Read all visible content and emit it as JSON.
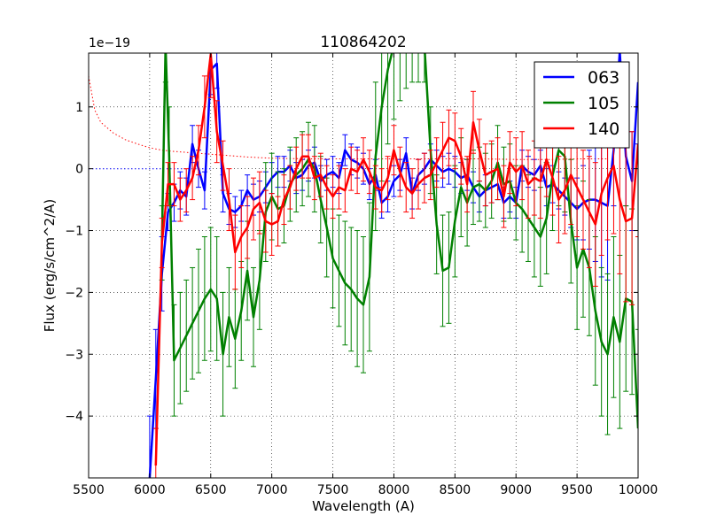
{
  "chart_data": {
    "type": "line",
    "title": "110864202",
    "xlabel": "Wavelength (A)",
    "ylabel": "Flux (erg/s/cm^2/A)",
    "offset_label": "1e−19",
    "xlim": [
      5500,
      10000
    ],
    "ylim": [
      -5,
      1.87
    ],
    "grid": true,
    "legend_position": "top-right",
    "x_ticks": [
      5500,
      6000,
      6500,
      7000,
      7500,
      8000,
      8500,
      9000,
      9500,
      10000
    ],
    "x_tick_labels": [
      "5500",
      "6000",
      "6500",
      "7000",
      "7500",
      "8000",
      "8500",
      "9000",
      "9500",
      "10000"
    ],
    "y_ticks": [
      1,
      0,
      -1,
      -2,
      -3,
      -4
    ],
    "y_tick_labels": [
      "1",
      "0",
      "−1",
      "−2",
      "−3",
      "−4"
    ],
    "reference_lines": [
      {
        "name": "zero-level",
        "color": "#0000ff",
        "style": "dotted",
        "x": [
          5500,
          6500
        ],
        "y": [
          0,
          0
        ]
      },
      {
        "name": "red-error-envelope",
        "color": "#ff0000",
        "style": "dotted",
        "x": [
          5500,
          5550,
          5600,
          5700,
          5800,
          5900,
          6000,
          6100,
          6200,
          6400,
          6600,
          6800,
          7000,
          7300,
          7800,
          8300,
          8700,
          9000,
          9300,
          9500,
          9750
        ],
        "y": [
          1.5,
          0.95,
          0.75,
          0.58,
          0.47,
          0.4,
          0.34,
          0.3,
          0.28,
          0.25,
          0.22,
          0.19,
          0.17,
          0.16,
          0.16,
          0.16,
          0.16,
          0.15,
          0.15,
          0.16,
          0.16
        ]
      }
    ],
    "series": [
      {
        "name": "063",
        "color": "#0000ff",
        "x": [
          6000,
          6050,
          6100,
          6150,
          6200,
          6250,
          6300,
          6350,
          6400,
          6450,
          6500,
          6550,
          6600,
          6650,
          6700,
          6750,
          6800,
          6850,
          6900,
          6950,
          7000,
          7050,
          7100,
          7150,
          7200,
          7250,
          7300,
          7350,
          7400,
          7450,
          7500,
          7550,
          7600,
          7650,
          7700,
          7750,
          7800,
          7850,
          7900,
          7950,
          8000,
          8050,
          8100,
          8150,
          8200,
          8250,
          8300,
          8350,
          8400,
          8450,
          8500,
          8550,
          8600,
          8650,
          8700,
          8750,
          8800,
          8850,
          8900,
          8950,
          9000,
          9050,
          9100,
          9150,
          9200,
          9250,
          9300,
          9350,
          9400,
          9450,
          9500,
          9550,
          9600,
          9650,
          9700,
          9750,
          9800,
          9850,
          9900,
          9950,
          10000
        ],
        "y": [
          -5.0,
          -3.4,
          -1.7,
          -0.7,
          -0.55,
          -0.35,
          -0.45,
          0.4,
          0.0,
          -0.35,
          1.6,
          1.7,
          -0.4,
          -0.65,
          -0.7,
          -0.6,
          -0.35,
          -0.5,
          -0.45,
          -0.3,
          -0.15,
          -0.05,
          -0.05,
          0.05,
          -0.15,
          -0.1,
          0.05,
          0.1,
          -0.2,
          -0.1,
          -0.05,
          -0.15,
          0.3,
          0.15,
          0.1,
          0.0,
          -0.25,
          -0.1,
          -0.55,
          -0.45,
          -0.2,
          -0.1,
          0.25,
          -0.4,
          -0.1,
          0.0,
          0.15,
          0.05,
          -0.05,
          0.0,
          -0.05,
          -0.15,
          -0.1,
          -0.3,
          -0.45,
          -0.35,
          -0.3,
          -0.25,
          -0.55,
          -0.45,
          -0.55,
          0.05,
          -0.05,
          -0.1,
          0.05,
          -0.3,
          -0.25,
          -0.35,
          -0.45,
          -0.55,
          -0.65,
          -0.55,
          -0.5,
          -0.5,
          -0.55,
          -0.6,
          0.3,
          1.9,
          0.2,
          -0.2,
          1.4
        ],
        "err": [
          1.0,
          0.8,
          0.6,
          0.3,
          0.3,
          0.3,
          0.3,
          0.3,
          0.3,
          0.3,
          0.4,
          0.4,
          0.3,
          0.25,
          0.25,
          0.25,
          0.25,
          0.25,
          0.25,
          0.25,
          0.25,
          0.25,
          0.25,
          0.25,
          0.25,
          0.25,
          0.25,
          0.25,
          0.25,
          0.25,
          0.25,
          0.25,
          0.25,
          0.25,
          0.25,
          0.25,
          0.25,
          0.25,
          0.25,
          0.25,
          0.25,
          0.25,
          0.25,
          0.25,
          0.25,
          0.25,
          0.25,
          0.25,
          0.25,
          0.25,
          0.25,
          0.25,
          0.25,
          0.25,
          0.25,
          0.25,
          0.25,
          0.25,
          0.25,
          0.25,
          0.25,
          0.25,
          0.25,
          0.25,
          0.25,
          0.3,
          0.3,
          0.3,
          0.3,
          0.4,
          0.5,
          0.6,
          0.8,
          1.0,
          1.2,
          1.2,
          0.9,
          1.0,
          0.8,
          0.8,
          1.0
        ]
      },
      {
        "name": "105",
        "color": "#008000",
        "x": [
          6100,
          6130,
          6160,
          6200,
          6250,
          6300,
          6350,
          6400,
          6450,
          6500,
          6550,
          6600,
          6650,
          6700,
          6750,
          6800,
          6850,
          6900,
          6950,
          7000,
          7050,
          7100,
          7150,
          7200,
          7250,
          7300,
          7350,
          7400,
          7450,
          7500,
          7550,
          7600,
          7650,
          7700,
          7750,
          7800,
          7850,
          7900,
          7950,
          8000,
          8050,
          8100,
          8150,
          8200,
          8250,
          8300,
          8350,
          8400,
          8450,
          8500,
          8550,
          8600,
          8650,
          8700,
          8750,
          8800,
          8850,
          8900,
          8950,
          9000,
          9050,
          9100,
          9150,
          9200,
          9250,
          9300,
          9350,
          9400,
          9450,
          9500,
          9550,
          9600,
          9650,
          9700,
          9750,
          9800,
          9850,
          9900,
          9950,
          10000
        ],
        "y": [
          -1.2,
          2.0,
          0.2,
          -3.1,
          -2.9,
          -2.7,
          -2.5,
          -2.3,
          -2.1,
          -1.95,
          -2.1,
          -3.0,
          -2.4,
          -2.75,
          -2.3,
          -1.65,
          -2.4,
          -1.8,
          -0.7,
          -0.45,
          -0.65,
          -0.6,
          -0.25,
          -0.1,
          0.0,
          0.15,
          0.0,
          -0.5,
          -0.95,
          -1.45,
          -1.65,
          -1.85,
          -1.95,
          -2.1,
          -2.2,
          -1.75,
          0.2,
          1.0,
          1.6,
          2.0,
          1.9,
          2.0,
          2.0,
          2.0,
          2.0,
          0.3,
          -0.9,
          -1.65,
          -1.6,
          -0.85,
          -0.3,
          -0.55,
          -0.3,
          -0.25,
          -0.35,
          -0.2,
          0.1,
          -0.25,
          -0.2,
          -0.55,
          -0.65,
          -0.8,
          -0.95,
          -1.1,
          -0.8,
          -0.1,
          0.3,
          0.2,
          -0.85,
          -1.6,
          -1.3,
          -1.6,
          -2.3,
          -2.8,
          -3.0,
          -2.4,
          -2.8,
          -2.1,
          -2.15,
          -4.2
        ],
        "err": [
          0.6,
          0.6,
          0.8,
          0.9,
          0.9,
          0.9,
          0.9,
          1.0,
          1.0,
          1.0,
          1.0,
          1.0,
          0.8,
          0.8,
          0.8,
          0.8,
          0.8,
          0.8,
          0.8,
          0.7,
          0.6,
          0.6,
          0.6,
          0.6,
          0.6,
          0.6,
          0.7,
          0.7,
          0.8,
          0.8,
          0.9,
          1.0,
          1.0,
          1.1,
          1.1,
          1.2,
          1.2,
          1.2,
          1.2,
          1.2,
          0.8,
          0.7,
          0.6,
          0.6,
          0.6,
          0.7,
          0.8,
          0.9,
          0.9,
          0.9,
          0.8,
          0.7,
          0.6,
          0.6,
          0.6,
          0.6,
          0.6,
          0.6,
          0.6,
          0.6,
          0.7,
          0.7,
          0.8,
          0.8,
          0.9,
          0.9,
          0.9,
          0.9,
          1.0,
          1.0,
          1.1,
          1.1,
          1.2,
          1.2,
          1.3,
          1.3,
          1.4,
          1.5,
          1.5,
          1.6
        ]
      },
      {
        "name": "140",
        "color": "#ff0000",
        "x": [
          6050,
          6100,
          6150,
          6200,
          6250,
          6300,
          6350,
          6400,
          6450,
          6500,
          6550,
          6600,
          6650,
          6700,
          6750,
          6800,
          6850,
          6900,
          6950,
          7000,
          7050,
          7100,
          7150,
          7200,
          7250,
          7300,
          7350,
          7400,
          7450,
          7500,
          7550,
          7600,
          7650,
          7700,
          7750,
          7800,
          7850,
          7900,
          7950,
          8000,
          8050,
          8100,
          8150,
          8200,
          8250,
          8300,
          8350,
          8400,
          8450,
          8500,
          8550,
          8600,
          8650,
          8700,
          8750,
          8800,
          8850,
          8900,
          8950,
          9000,
          9050,
          9100,
          9150,
          9200,
          9250,
          9300,
          9350,
          9400,
          9450,
          9500,
          9550,
          9600,
          9650,
          9700,
          9750,
          9800,
          9850,
          9900,
          9950,
          10000
        ],
        "y": [
          -4.8,
          -1.2,
          -0.25,
          -0.25,
          -0.5,
          -0.35,
          -0.15,
          0.3,
          1.0,
          1.85,
          0.6,
          0.05,
          -0.5,
          -1.35,
          -1.1,
          -0.95,
          -0.65,
          -0.55,
          -0.85,
          -0.9,
          -0.85,
          -0.5,
          -0.3,
          0.0,
          0.2,
          0.2,
          -0.15,
          -0.1,
          -0.3,
          -0.45,
          -0.3,
          -0.35,
          0.0,
          -0.05,
          0.15,
          -0.05,
          -0.3,
          -0.35,
          -0.15,
          0.3,
          -0.05,
          -0.3,
          -0.4,
          -0.25,
          -0.15,
          -0.1,
          0.1,
          0.3,
          0.5,
          0.45,
          0.2,
          -0.25,
          0.75,
          0.3,
          -0.1,
          -0.05,
          0.0,
          -0.45,
          0.1,
          -0.05,
          0.05,
          -0.25,
          -0.15,
          -0.2,
          0.15,
          -0.15,
          -0.5,
          -0.35,
          -0.1,
          -0.3,
          -0.5,
          -0.7,
          -0.9,
          -0.4,
          -0.15,
          0.05,
          -0.5,
          -0.85,
          -0.8,
          0.4
        ],
        "err": [
          0.6,
          0.4,
          0.35,
          0.35,
          0.35,
          0.35,
          0.35,
          0.4,
          0.5,
          0.7,
          0.5,
          0.4,
          0.5,
          0.6,
          0.5,
          0.5,
          0.5,
          0.5,
          0.5,
          0.5,
          0.4,
          0.4,
          0.35,
          0.35,
          0.35,
          0.35,
          0.35,
          0.35,
          0.35,
          0.35,
          0.35,
          0.35,
          0.35,
          0.35,
          0.35,
          0.35,
          0.35,
          0.35,
          0.35,
          0.4,
          0.4,
          0.4,
          0.4,
          0.4,
          0.4,
          0.4,
          0.4,
          0.45,
          0.45,
          0.45,
          0.45,
          0.45,
          0.5,
          0.5,
          0.5,
          0.5,
          0.5,
          0.5,
          0.5,
          0.55,
          0.55,
          0.55,
          0.6,
          0.6,
          0.6,
          0.6,
          0.7,
          0.7,
          0.8,
          0.8,
          0.8,
          0.9,
          1.0,
          1.0,
          1.0,
          1.1,
          1.2,
          1.3,
          1.4,
          1.5
        ]
      }
    ]
  }
}
